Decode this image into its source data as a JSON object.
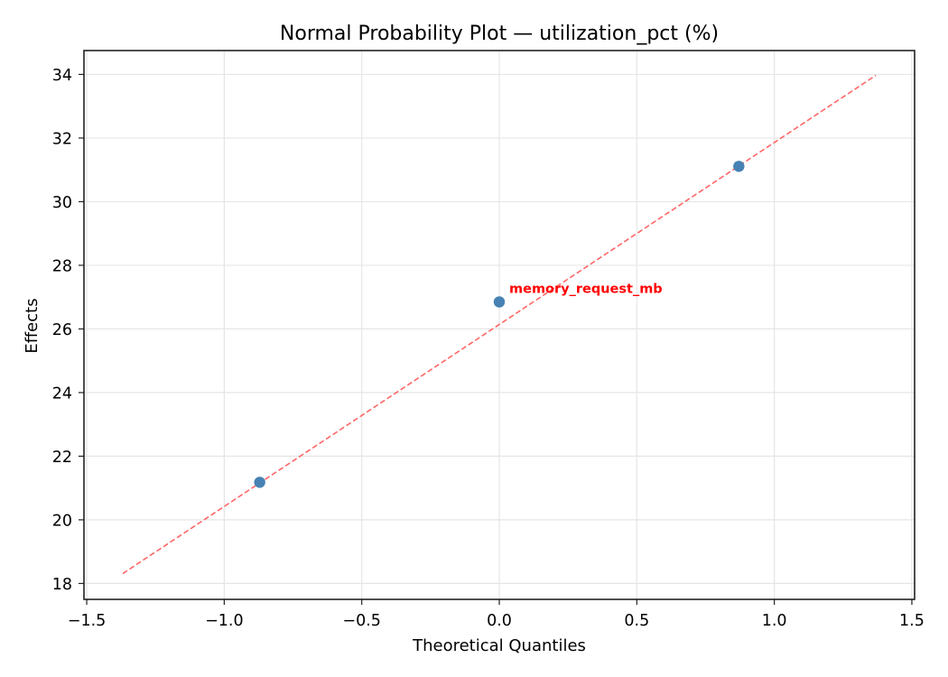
{
  "chart_data": {
    "type": "scatter",
    "title": "Normal Probability Plot — utilization_pct (%)",
    "xlabel": "Theoretical Quantiles",
    "ylabel": "Effects",
    "xlim": [
      -1.51,
      1.51
    ],
    "ylim": [
      17.5,
      34.75
    ],
    "xticks": [
      -1.5,
      -1.0,
      -0.5,
      0.0,
      0.5,
      1.0,
      1.5
    ],
    "xtick_labels": [
      "−1.5",
      "−1.0",
      "−0.5",
      "0.0",
      "0.5",
      "1.0",
      "1.5"
    ],
    "yticks": [
      18,
      20,
      22,
      24,
      26,
      28,
      30,
      32,
      34
    ],
    "ytick_labels": [
      "18",
      "20",
      "22",
      "24",
      "26",
      "28",
      "30",
      "32",
      "34"
    ],
    "grid": true,
    "legend": null,
    "series": [
      {
        "name": "effects",
        "kind": "points",
        "color": "#4682b4",
        "x": [
          -0.871,
          0.0,
          0.871
        ],
        "y": [
          21.18,
          26.85,
          31.11
        ]
      },
      {
        "name": "reference-line",
        "kind": "dashed-line",
        "color": "#ff6666",
        "x": [
          -1.369,
          1.369
        ],
        "y": [
          18.31,
          33.97
        ]
      }
    ],
    "annotations": [
      {
        "text": "memory_request_mb",
        "x": 0.0,
        "y": 26.85,
        "color": "#ff0000",
        "bold": true
      }
    ]
  },
  "colors": {
    "point": "#4682b4",
    "line": "#ff6666",
    "annotation": "#ff0000",
    "grid": "#e6e6e6",
    "frame": "#222222"
  }
}
